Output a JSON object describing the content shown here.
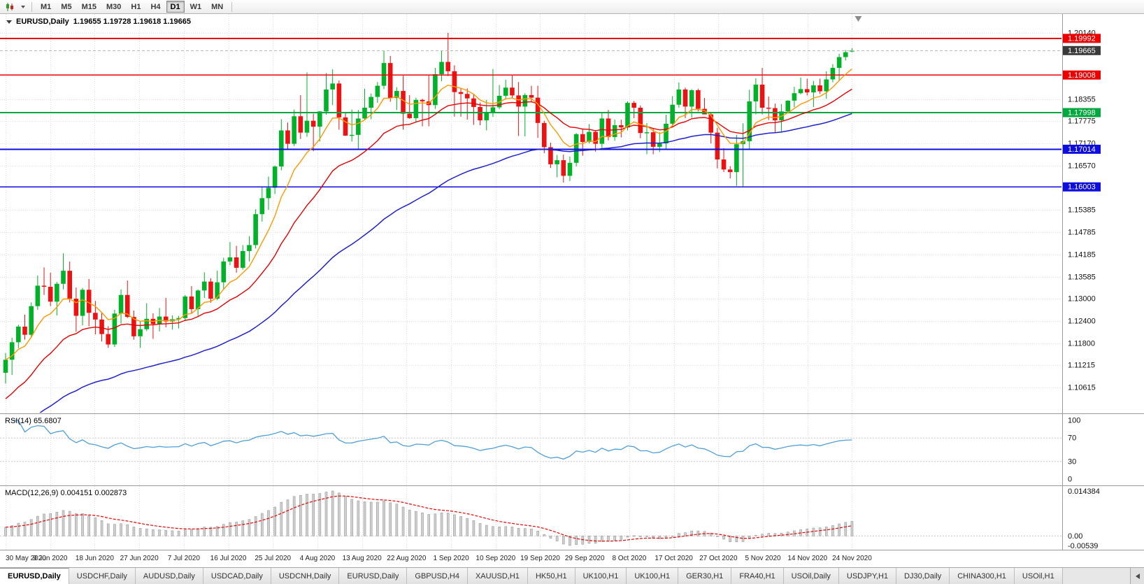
{
  "toolbar": {
    "chart_type_icon": "candlestick-chart-icon",
    "dropdown_icon": "chevron-down-icon",
    "timeframes": [
      {
        "label": "M1",
        "active": false
      },
      {
        "label": "M5",
        "active": false
      },
      {
        "label": "M15",
        "active": false
      },
      {
        "label": "M30",
        "active": false
      },
      {
        "label": "H1",
        "active": false
      },
      {
        "label": "H4",
        "active": false
      },
      {
        "label": "D1",
        "active": true
      },
      {
        "label": "W1",
        "active": false
      },
      {
        "label": "MN",
        "active": false
      }
    ]
  },
  "chart": {
    "title_symbol": "EURUSD,Daily",
    "title_ohlc": "1.19655 1.19728 1.19618 1.19665",
    "shift_marker_icon": "triangle-down-icon",
    "colors": {
      "up": "#00b227",
      "down": "#ee1111",
      "ma_fast": "#ff9900",
      "ma_med": "#e60000",
      "ma_slow": "#2121cc",
      "grid": "#dcdcdc",
      "resistance": "#ee0000",
      "support_green": "#00a83d",
      "support_blue": "#0d0de0",
      "current": "#3a3a3a"
    },
    "price_axis_labels": [
      "1.20140",
      "1.18355",
      "1.17775",
      "1.17170",
      "1.16570",
      "1.15385",
      "1.14785",
      "1.14185",
      "1.13585",
      "1.13000",
      "1.12400",
      "1.11800",
      "1.11215",
      "1.10615"
    ],
    "price_tags": [
      {
        "label": "1.19992",
        "price": 1.19992,
        "kind": "resistance"
      },
      {
        "label": "1.19665",
        "price": 1.19665,
        "kind": "current"
      },
      {
        "label": "1.19008",
        "price": 1.19008,
        "kind": "resistance"
      },
      {
        "label": "1.17998",
        "price": 1.17998,
        "kind": "support_green"
      },
      {
        "label": "1.17014",
        "price": 1.17014,
        "kind": "support_blue"
      },
      {
        "label": "1.16003",
        "price": 1.16003,
        "kind": "support_blue"
      }
    ],
    "date_labels": [
      "30 May 2020",
      "9 Jun 2020",
      "18 Jun 2020",
      "27 Jun 2020",
      "7 Jul 2020",
      "16 Jul 2020",
      "25 Jul 2020",
      "4 Aug 2020",
      "13 Aug 2020",
      "22 Aug 2020",
      "1 Sep 2020",
      "10 Sep 2020",
      "19 Sep 2020",
      "29 Sep 2020",
      "8 Oct 2020",
      "17 Oct 2020",
      "27 Oct 2020",
      "5 Nov 2020",
      "14 Nov 2020",
      "24 Nov 2020"
    ],
    "candles": [
      [
        1.1101,
        1.1154,
        1.1072,
        1.1136
      ],
      [
        1.1136,
        1.1195,
        1.1095,
        1.1183
      ],
      [
        1.1183,
        1.123,
        1.1167,
        1.1225
      ],
      [
        1.1225,
        1.1257,
        1.119,
        1.1203
      ],
      [
        1.1203,
        1.129,
        1.1195,
        1.128
      ],
      [
        1.128,
        1.1362,
        1.127,
        1.1335
      ],
      [
        1.1335,
        1.1384,
        1.131,
        1.1332
      ],
      [
        1.1332,
        1.137,
        1.128,
        1.1292
      ],
      [
        1.1292,
        1.1345,
        1.1255,
        1.134
      ],
      [
        1.134,
        1.1422,
        1.1325,
        1.1375
      ],
      [
        1.1375,
        1.14,
        1.129,
        1.13
      ],
      [
        1.13,
        1.133,
        1.1211,
        1.1254
      ],
      [
        1.1254,
        1.1329,
        1.1228,
        1.1324
      ],
      [
        1.1324,
        1.1353,
        1.1226,
        1.1262
      ],
      [
        1.1262,
        1.1294,
        1.1204,
        1.1244
      ],
      [
        1.1244,
        1.1262,
        1.1185,
        1.1205
      ],
      [
        1.1205,
        1.1226,
        1.1168,
        1.1177
      ],
      [
        1.1177,
        1.127,
        1.117,
        1.126
      ],
      [
        1.126,
        1.1325,
        1.1233,
        1.131
      ],
      [
        1.131,
        1.1349,
        1.1248,
        1.1251
      ],
      [
        1.1251,
        1.1268,
        1.119,
        1.1199
      ],
      [
        1.1199,
        1.1239,
        1.1168,
        1.1218
      ],
      [
        1.1218,
        1.1288,
        1.1213,
        1.1246
      ],
      [
        1.1246,
        1.1261,
        1.1192,
        1.1232
      ],
      [
        1.1232,
        1.1275,
        1.1212,
        1.1252
      ],
      [
        1.1252,
        1.1302,
        1.1223,
        1.1239
      ],
      [
        1.1239,
        1.1255,
        1.1217,
        1.1245
      ],
      [
        1.1245,
        1.1254,
        1.122,
        1.1248
      ],
      [
        1.1248,
        1.131,
        1.124,
        1.1306
      ],
      [
        1.1306,
        1.1334,
        1.1259,
        1.1272
      ],
      [
        1.1272,
        1.1325,
        1.1254,
        1.1322
      ],
      [
        1.1322,
        1.1371,
        1.1302,
        1.1346
      ],
      [
        1.1346,
        1.1355,
        1.1289,
        1.13
      ],
      [
        1.13,
        1.1375,
        1.1296,
        1.1344
      ],
      [
        1.1344,
        1.141,
        1.1325,
        1.14
      ],
      [
        1.14,
        1.1452,
        1.139,
        1.1411
      ],
      [
        1.1411,
        1.1442,
        1.137,
        1.1383
      ],
      [
        1.1383,
        1.1444,
        1.1378,
        1.1428
      ],
      [
        1.1428,
        1.1468,
        1.14,
        1.1444
      ],
      [
        1.1444,
        1.154,
        1.1435,
        1.1527
      ],
      [
        1.1527,
        1.1601,
        1.1507,
        1.157
      ],
      [
        1.157,
        1.1628,
        1.1539,
        1.1598
      ],
      [
        1.1598,
        1.1658,
        1.1581,
        1.1655
      ],
      [
        1.1655,
        1.1782,
        1.1645,
        1.1752
      ],
      [
        1.1752,
        1.1773,
        1.17,
        1.1716
      ],
      [
        1.1716,
        1.1808,
        1.171,
        1.179
      ],
      [
        1.179,
        1.1847,
        1.1729,
        1.1746
      ],
      [
        1.1746,
        1.1908,
        1.1735,
        1.1778
      ],
      [
        1.1778,
        1.1797,
        1.1696,
        1.1762
      ],
      [
        1.1762,
        1.1804,
        1.1722,
        1.1803
      ],
      [
        1.1803,
        1.1906,
        1.1794,
        1.1862
      ],
      [
        1.1862,
        1.1916,
        1.182,
        1.1878
      ],
      [
        1.1878,
        1.1886,
        1.1754,
        1.1787
      ],
      [
        1.1787,
        1.1798,
        1.1737,
        1.1738
      ],
      [
        1.1738,
        1.1808,
        1.1722,
        1.174
      ],
      [
        1.174,
        1.1807,
        1.1701,
        1.1784
      ],
      [
        1.1784,
        1.1864,
        1.1782,
        1.1813
      ],
      [
        1.1813,
        1.1851,
        1.1782,
        1.1842
      ],
      [
        1.1842,
        1.1882,
        1.1826,
        1.1872
      ],
      [
        1.1872,
        1.1966,
        1.1863,
        1.1933
      ],
      [
        1.1933,
        1.1952,
        1.1829,
        1.1839
      ],
      [
        1.1839,
        1.1868,
        1.1807,
        1.1858
      ],
      [
        1.1858,
        1.1899,
        1.1754,
        1.1797
      ],
      [
        1.1797,
        1.1847,
        1.1783,
        1.1785
      ],
      [
        1.1785,
        1.184,
        1.1773,
        1.1834
      ],
      [
        1.1834,
        1.1837,
        1.1763,
        1.183
      ],
      [
        1.183,
        1.1902,
        1.1763,
        1.182
      ],
      [
        1.182,
        1.192,
        1.181,
        1.1903
      ],
      [
        1.1903,
        1.1966,
        1.1884,
        1.1936
      ],
      [
        1.1936,
        1.2014,
        1.1898,
        1.1911
      ],
      [
        1.1911,
        1.1927,
        1.1789,
        1.1855
      ],
      [
        1.1855,
        1.1864,
        1.1789,
        1.185
      ],
      [
        1.185,
        1.1865,
        1.1781,
        1.1838
      ],
      [
        1.1838,
        1.1848,
        1.1767,
        1.1815
      ],
      [
        1.1815,
        1.1827,
        1.1766,
        1.1779
      ],
      [
        1.1779,
        1.1834,
        1.1752,
        1.1801
      ],
      [
        1.1801,
        1.1917,
        1.1788,
        1.1814
      ],
      [
        1.1814,
        1.1874,
        1.1809,
        1.1845
      ],
      [
        1.1845,
        1.1888,
        1.1835,
        1.1867
      ],
      [
        1.1867,
        1.19,
        1.1838,
        1.1846
      ],
      [
        1.1846,
        1.1882,
        1.1737,
        1.1816
      ],
      [
        1.1816,
        1.1852,
        1.1736,
        1.1847
      ],
      [
        1.1847,
        1.1872,
        1.1827,
        1.184
      ],
      [
        1.184,
        1.1872,
        1.1732,
        1.1772
      ],
      [
        1.1772,
        1.1778,
        1.1691,
        1.1707
      ],
      [
        1.1707,
        1.1719,
        1.1651,
        1.1661
      ],
      [
        1.1661,
        1.1686,
        1.1626,
        1.1672
      ],
      [
        1.1672,
        1.1687,
        1.1612,
        1.163
      ],
      [
        1.163,
        1.1682,
        1.1616,
        1.1665
      ],
      [
        1.1665,
        1.1745,
        1.1655,
        1.1742
      ],
      [
        1.1742,
        1.1755,
        1.1684,
        1.1721
      ],
      [
        1.1721,
        1.1769,
        1.1717,
        1.1748
      ],
      [
        1.1748,
        1.1751,
        1.1695,
        1.1716
      ],
      [
        1.1716,
        1.1798,
        1.1705,
        1.1784
      ],
      [
        1.1784,
        1.1807,
        1.1725,
        1.1734
      ],
      [
        1.1734,
        1.1781,
        1.1724,
        1.1766
      ],
      [
        1.1766,
        1.1781,
        1.1733,
        1.176
      ],
      [
        1.176,
        1.183,
        1.1752,
        1.1826
      ],
      [
        1.1826,
        1.1831,
        1.1785,
        1.1813
      ],
      [
        1.1813,
        1.1819,
        1.1731,
        1.1745
      ],
      [
        1.1745,
        1.1772,
        1.1688,
        1.1747
      ],
      [
        1.1747,
        1.1758,
        1.1688,
        1.1708
      ],
      [
        1.1708,
        1.1747,
        1.1694,
        1.1717
      ],
      [
        1.1717,
        1.1794,
        1.1703,
        1.177
      ],
      [
        1.177,
        1.1844,
        1.176,
        1.1821
      ],
      [
        1.1821,
        1.1881,
        1.1813,
        1.1862
      ],
      [
        1.1862,
        1.1867,
        1.1785,
        1.1816
      ],
      [
        1.1816,
        1.1863,
        1.1786,
        1.186
      ],
      [
        1.186,
        1.1864,
        1.1803,
        1.181
      ],
      [
        1.181,
        1.1839,
        1.1795,
        1.1795
      ],
      [
        1.1795,
        1.18,
        1.1717,
        1.1746
      ],
      [
        1.1746,
        1.1759,
        1.165,
        1.1674
      ],
      [
        1.1674,
        1.1704,
        1.164,
        1.1647
      ],
      [
        1.1647,
        1.1656,
        1.1623,
        1.164
      ],
      [
        1.164,
        1.174,
        1.1603,
        1.1715
      ],
      [
        1.1715,
        1.1771,
        1.1602,
        1.1723
      ],
      [
        1.1723,
        1.1861,
        1.1702,
        1.183
      ],
      [
        1.183,
        1.1892,
        1.1795,
        1.1875
      ],
      [
        1.1875,
        1.192,
        1.1795,
        1.1813
      ],
      [
        1.1813,
        1.1843,
        1.178,
        1.1812
      ],
      [
        1.1812,
        1.1824,
        1.1745,
        1.1779
      ],
      [
        1.1779,
        1.1823,
        1.1746,
        1.1803
      ],
      [
        1.1803,
        1.1833,
        1.1799,
        1.1832
      ],
      [
        1.1832,
        1.1869,
        1.1814,
        1.1852
      ],
      [
        1.1852,
        1.1894,
        1.1849,
        1.1863
      ],
      [
        1.1863,
        1.1891,
        1.1846,
        1.1854
      ],
      [
        1.1854,
        1.1885,
        1.1815,
        1.1873
      ],
      [
        1.1873,
        1.1891,
        1.185,
        1.1857
      ],
      [
        1.1857,
        1.1911,
        1.1837,
        1.1889
      ],
      [
        1.1889,
        1.193,
        1.1881,
        1.192
      ],
      [
        1.192,
        1.1958,
        1.1885,
        1.1949
      ],
      [
        1.1949,
        1.1968,
        1.194,
        1.1962
      ],
      [
        1.19655,
        1.19728,
        1.19618,
        1.19665
      ]
    ]
  },
  "rsi": {
    "label": "RSI(14) 65.6807",
    "period": 14,
    "color": "#4f9fd8",
    "axis_labels": [
      "100",
      "70",
      "30",
      "0"
    ],
    "levels": [
      70,
      30
    ]
  },
  "macd": {
    "label": "MACD(12,26,9) 0.004151 0.002873",
    "fast": 12,
    "slow": 26,
    "signal": 9,
    "axis_max": "0.014384",
    "axis_zero": "0.00",
    "axis_min": "-0.00539",
    "histogram_color": "#cfcfcf",
    "signal_color": "#ee0000"
  },
  "tabs": {
    "scroll_icon": "chevron-left-icon",
    "items": [
      {
        "label": "EURUSD,Daily",
        "active": true
      },
      {
        "label": "USDCHF,Daily",
        "active": false
      },
      {
        "label": "AUDUSD,Daily",
        "active": false
      },
      {
        "label": "USDCAD,Daily",
        "active": false
      },
      {
        "label": "USDCNH,Daily",
        "active": false
      },
      {
        "label": "EURUSD,Daily",
        "active": false
      },
      {
        "label": "GBPUSD,H4",
        "active": false
      },
      {
        "label": "XAUUSD,H1",
        "active": false
      },
      {
        "label": "HK50,H1",
        "active": false
      },
      {
        "label": "UK100,H1",
        "active": false
      },
      {
        "label": "UK100,H1",
        "active": false
      },
      {
        "label": "GER30,H1",
        "active": false
      },
      {
        "label": "FRA40,H1",
        "active": false
      },
      {
        "label": "USOil,Daily",
        "active": false
      },
      {
        "label": "USDJPY,H1",
        "active": false
      },
      {
        "label": "DJ30,Daily",
        "active": false
      },
      {
        "label": "CHINA300,H1",
        "active": false
      },
      {
        "label": "USOil,H1",
        "active": false
      }
    ]
  }
}
